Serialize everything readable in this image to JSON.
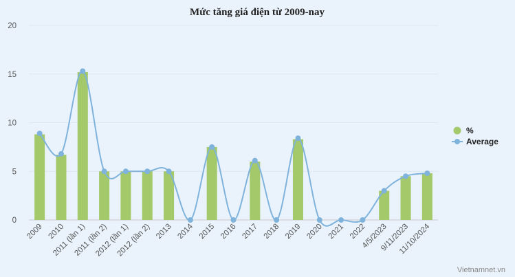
{
  "chart_data": {
    "type": "bar",
    "title": "Mức tăng giá điện từ 2009-nay",
    "xlabel": "",
    "ylabel": "",
    "ylim": [
      0,
      20
    ],
    "yticks": [
      "0",
      "5",
      "10",
      "15",
      "20"
    ],
    "grid": true,
    "legend_position": "right",
    "categories": [
      "2009",
      "2010",
      "2011 (lần 1)",
      "2011 (lần 2)",
      "2012 (lần 1)",
      "2012 (lần 2)",
      "2013",
      "2014",
      "2015",
      "2016",
      "2017",
      "2018",
      "2019",
      "2020",
      "2021",
      "2022",
      "4/5/2023",
      "9/11/2023",
      "11/10/2024"
    ],
    "series": [
      {
        "name": "%",
        "type": "bar",
        "color": "#a3c96a",
        "values": [
          8.8,
          6.7,
          15.2,
          5.0,
          5.0,
          5.0,
          5.0,
          0,
          7.5,
          0,
          6.0,
          0,
          8.3,
          0,
          0,
          0,
          3.0,
          4.5,
          4.8
        ]
      },
      {
        "name": "Average",
        "type": "line",
        "color": "#7fb3dc",
        "values": [
          8.9,
          6.8,
          15.3,
          5.0,
          5.0,
          5.0,
          5.0,
          0,
          7.5,
          0,
          6.1,
          0,
          8.4,
          0,
          0,
          0,
          3.0,
          4.5,
          4.8
        ]
      }
    ]
  },
  "credit": "Vietnamnet.vn"
}
